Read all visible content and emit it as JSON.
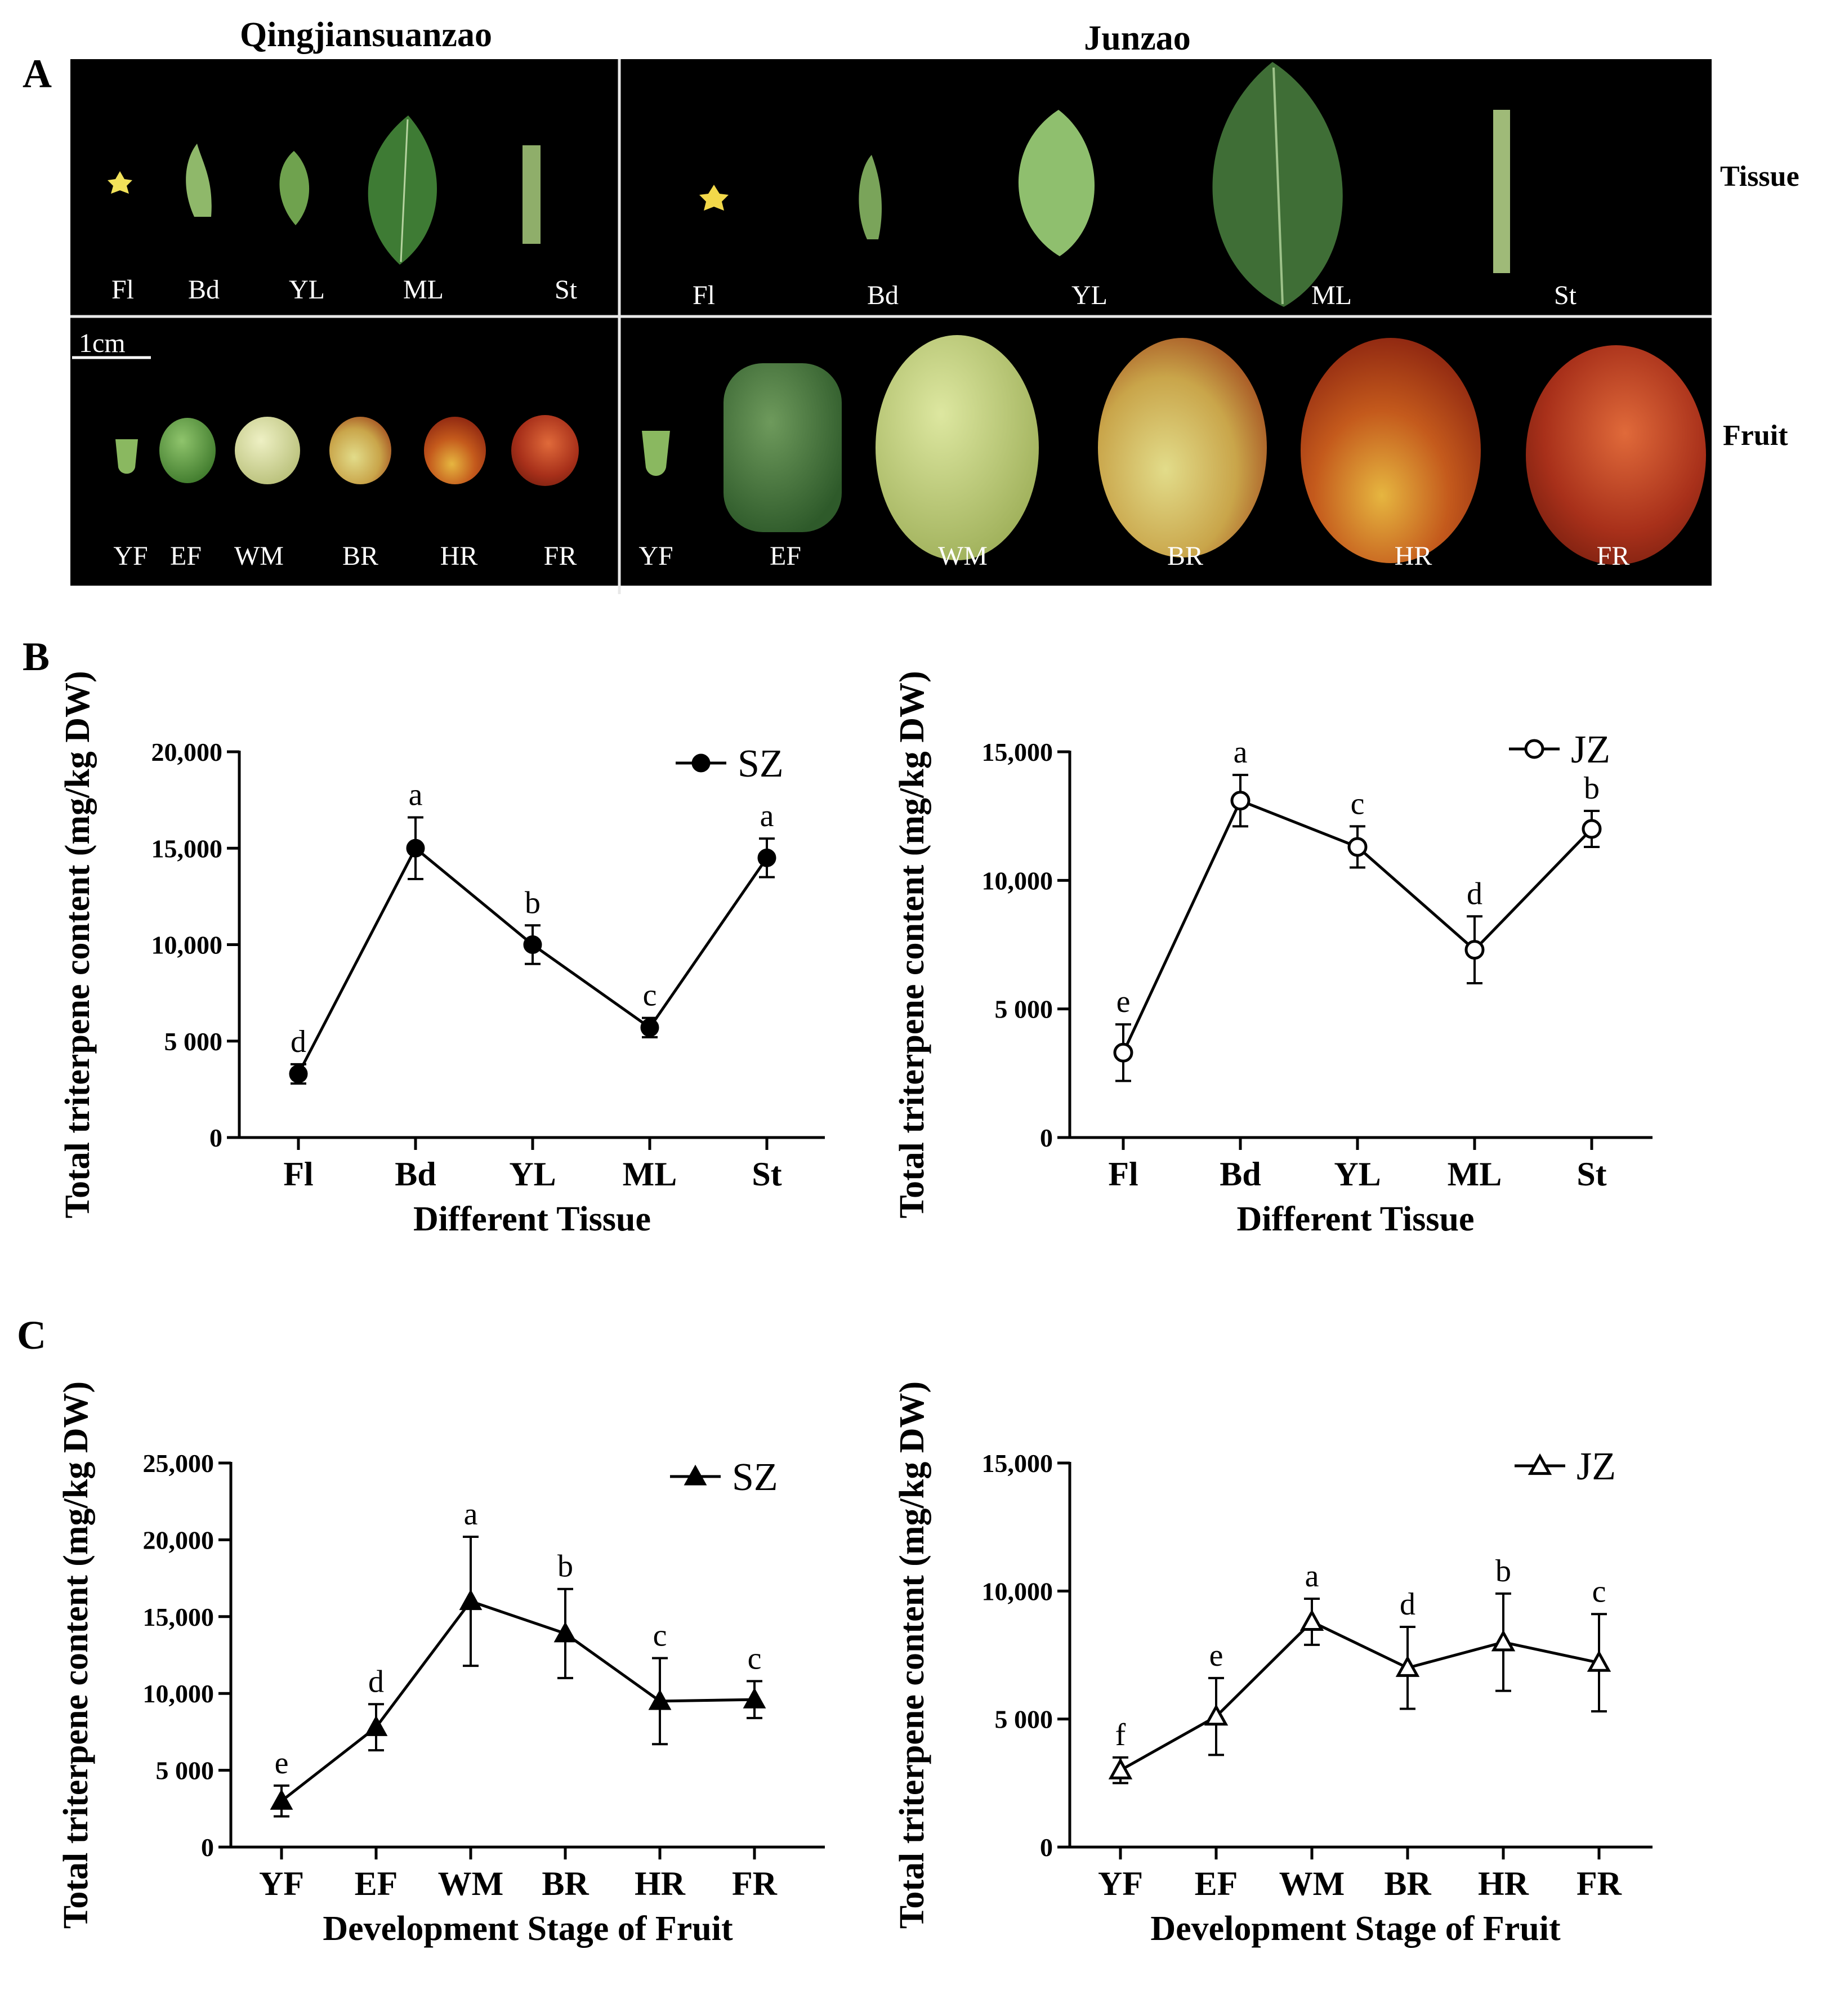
{
  "panel_letters": [
    "A",
    "B",
    "C"
  ],
  "photo_panel": {
    "cultivar_left": "Qingjiansuanzao",
    "cultivar_right": "Junzao",
    "row_tissue_label": "Tissue",
    "row_fruit_label": "Fruit",
    "scale_bar": "1cm",
    "tissue_left": [
      "Fl",
      "Bd",
      "YL",
      "ML",
      "St"
    ],
    "tissue_right": [
      "Fl",
      "Bd",
      "YL",
      "ML",
      "St"
    ],
    "fruit_left": [
      "YF",
      "EF",
      "WM",
      "BR",
      "HR",
      "FR"
    ],
    "fruit_right": [
      "YF",
      "EF",
      "WM",
      "BR",
      "HR",
      "FR"
    ]
  },
  "chart_data": [
    {
      "id": "B-left",
      "type": "line",
      "marker": "filled-circle",
      "series_name": "SZ",
      "categories": [
        "Fl",
        "Bd",
        "YL",
        "ML",
        "St"
      ],
      "values": [
        3300,
        15000,
        10000,
        5700,
        14500
      ],
      "errors": [
        500,
        1600,
        1000,
        500,
        1000
      ],
      "significance": [
        "d",
        "a",
        "b",
        "c",
        "a"
      ],
      "ylim": [
        0,
        20000
      ],
      "yticks": [
        0,
        5000,
        10000,
        15000,
        20000
      ],
      "ytick_labels": [
        "0",
        "5 000",
        "10,000",
        "15,000",
        "20,000"
      ],
      "xlabel": "Different Tissue",
      "ylabel": "Total triterpene content (mg/kg DW)"
    },
    {
      "id": "B-right",
      "type": "line",
      "marker": "open-circle",
      "series_name": "JZ",
      "categories": [
        "Fl",
        "Bd",
        "YL",
        "ML",
        "St"
      ],
      "values": [
        3300,
        13100,
        11300,
        7300,
        12000
      ],
      "errors": [
        1100,
        1000,
        800,
        1300,
        700
      ],
      "significance": [
        "e",
        "a",
        "c",
        "d",
        "b"
      ],
      "ylim": [
        0,
        15000
      ],
      "yticks": [
        0,
        5000,
        10000,
        15000
      ],
      "ytick_labels": [
        "0",
        "5 000",
        "10,000",
        "15,000"
      ],
      "xlabel": "Different Tissue",
      "ylabel": "Total triterpene content (mg/kg DW)"
    },
    {
      "id": "C-left",
      "type": "line",
      "marker": "filled-triangle",
      "series_name": "SZ",
      "categories": [
        "YF",
        "EF",
        "WM",
        "BR",
        "HR",
        "FR"
      ],
      "values": [
        3000,
        7800,
        16000,
        13900,
        9500,
        9600
      ],
      "errors": [
        1000,
        1500,
        4200,
        2900,
        2800,
        1200
      ],
      "significance": [
        "e",
        "d",
        "a",
        "b",
        "c",
        "c"
      ],
      "ylim": [
        0,
        25000
      ],
      "yticks": [
        0,
        5000,
        10000,
        15000,
        20000,
        25000
      ],
      "ytick_labels": [
        "0",
        "5 000",
        "10,000",
        "15,000",
        "20,000",
        "25,000"
      ],
      "xlabel": "Development Stage of Fruit",
      "ylabel": "Total triterpene content (mg/kg DW)"
    },
    {
      "id": "C-right",
      "type": "line",
      "marker": "open-triangle",
      "series_name": "JZ",
      "categories": [
        "YF",
        "EF",
        "WM",
        "BR",
        "HR",
        "FR"
      ],
      "values": [
        3000,
        5100,
        8800,
        7000,
        8000,
        7200
      ],
      "errors": [
        500,
        1500,
        900,
        1600,
        1900,
        1900
      ],
      "significance": [
        "f",
        "e",
        "a",
        "d",
        "b",
        "c"
      ],
      "ylim": [
        0,
        15000
      ],
      "yticks": [
        0,
        5000,
        10000,
        15000
      ],
      "ytick_labels": [
        "0",
        "5 000",
        "10,000",
        "15,000"
      ],
      "xlabel": "Development Stage of Fruit",
      "ylabel": "Total triterpene content (mg/kg DW)"
    }
  ]
}
